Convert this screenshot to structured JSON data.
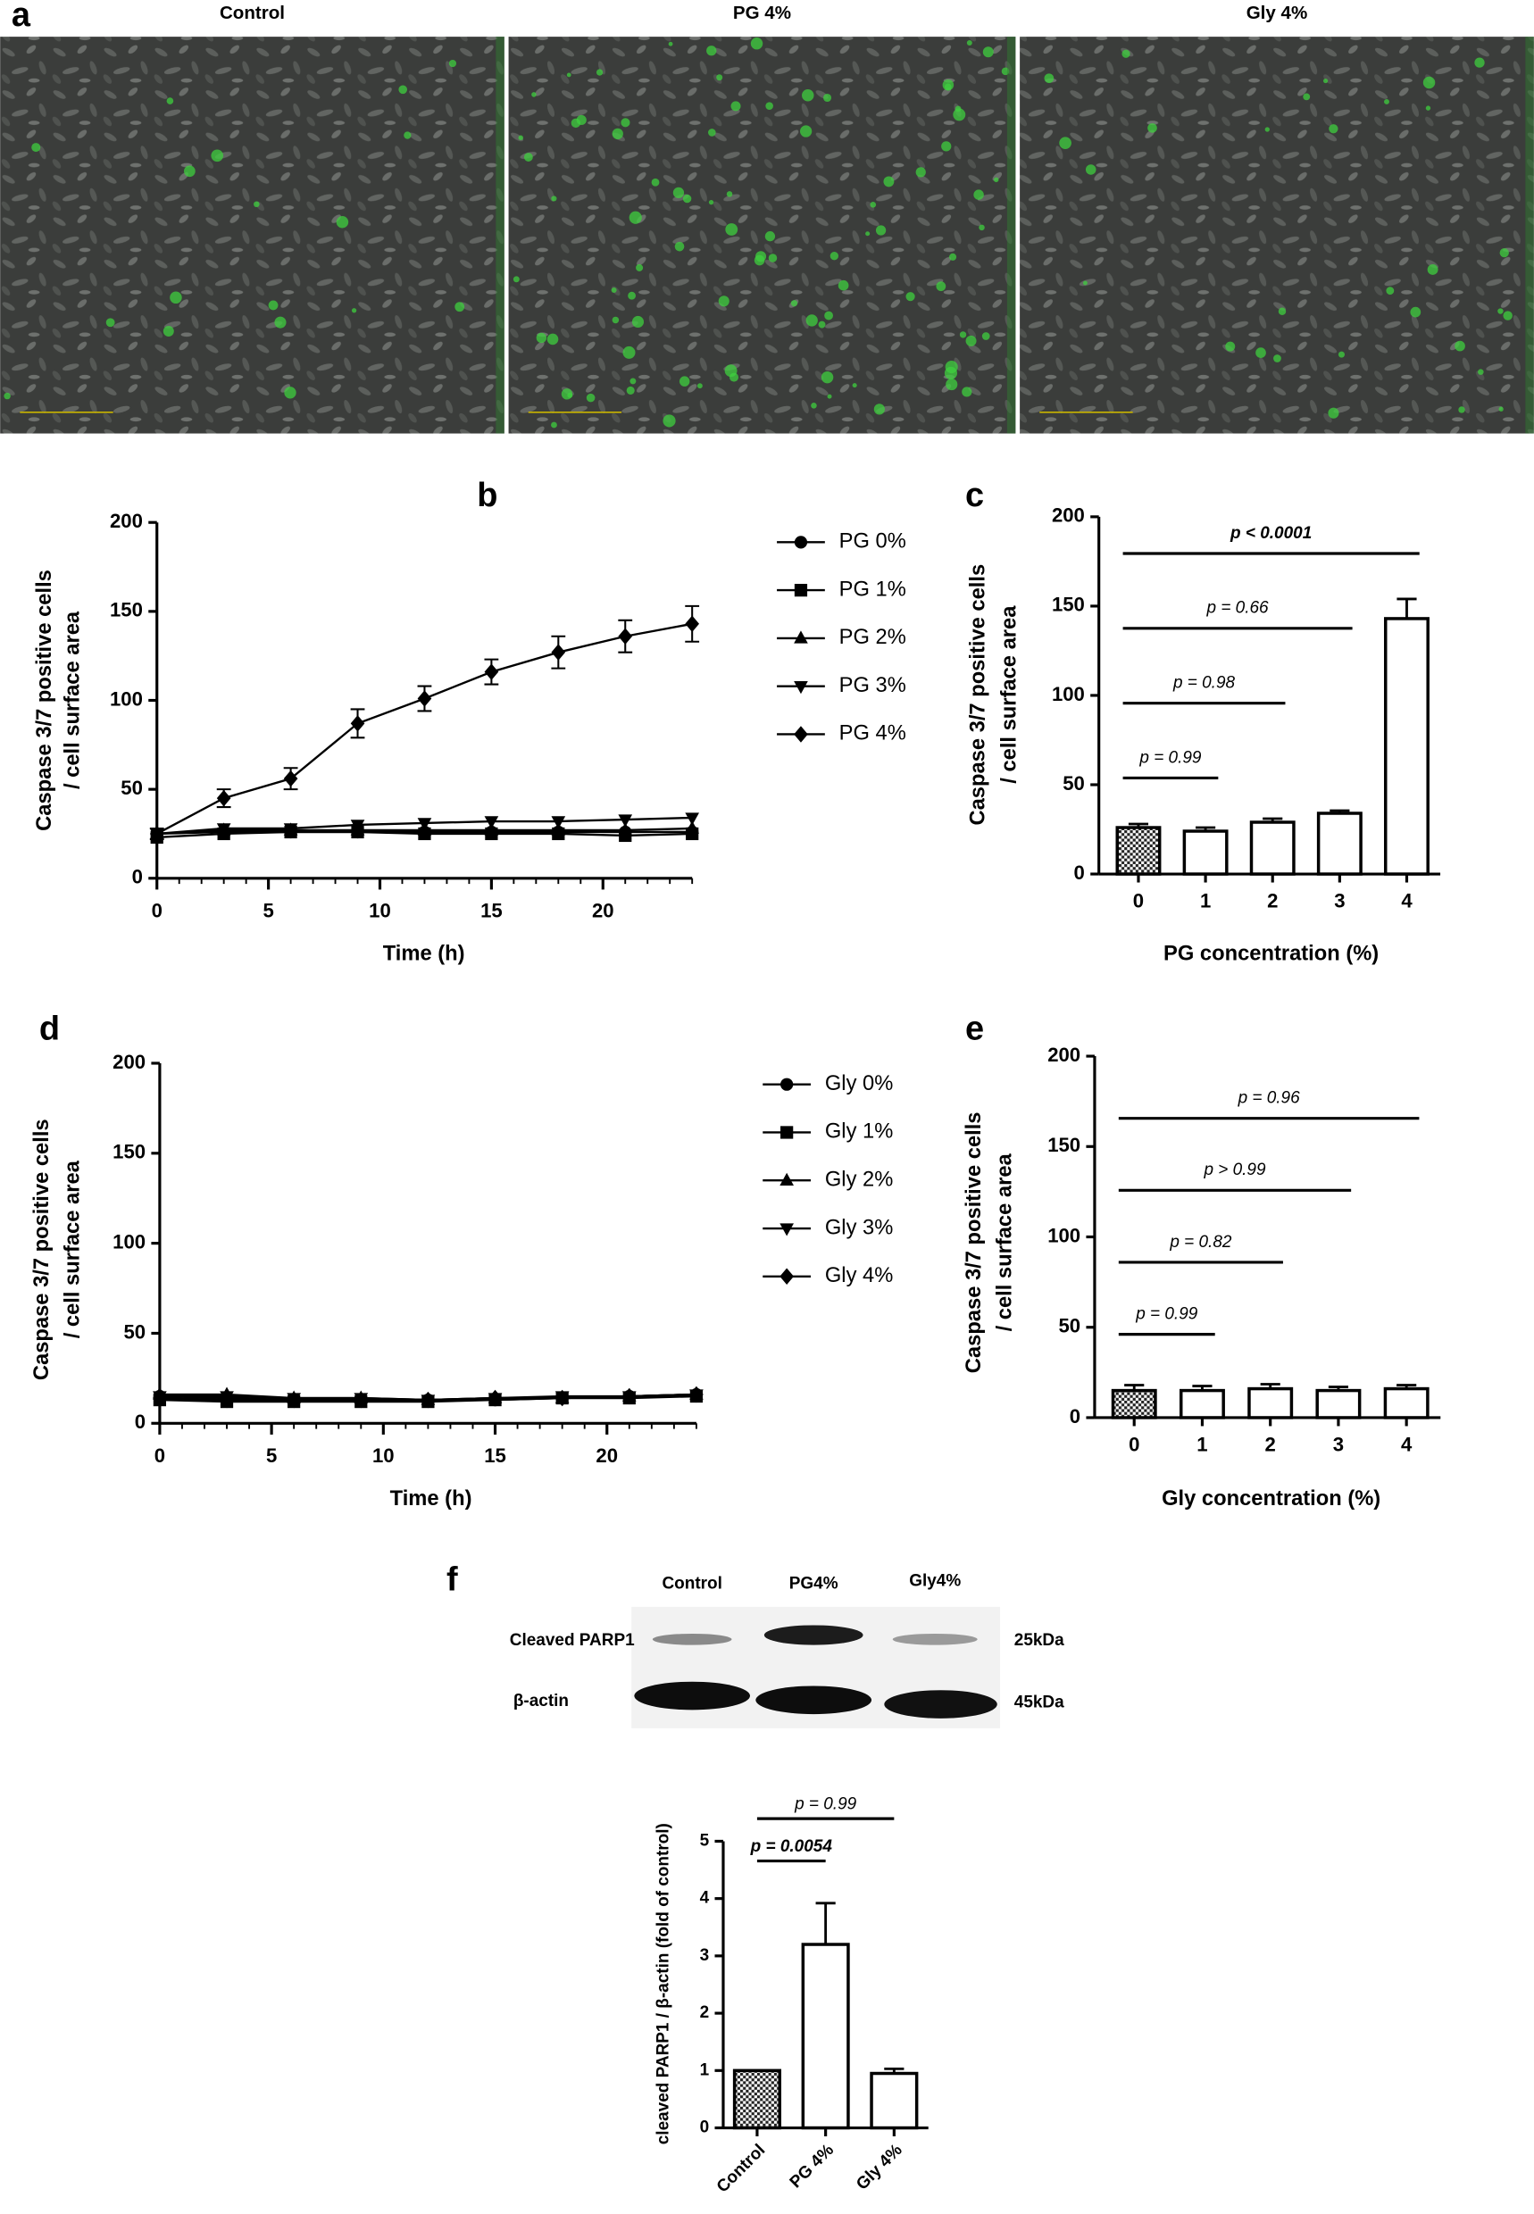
{
  "panel_a": {
    "panel": "a",
    "titles": [
      "Control",
      "PG 4%",
      "Gly 4%"
    ]
  },
  "blot": {
    "panel": "f",
    "lanes": [
      "Control",
      "PG4%",
      "Gly4%"
    ],
    "rows": [
      {
        "name": "Cleaved PARP1",
        "size": "25kDa"
      },
      {
        "name": "β-actin",
        "size": "45kDa"
      }
    ]
  },
  "chart_data": [
    {
      "type": "line",
      "panel": "b",
      "x_label": "Time (h)",
      "y_label": [
        "Caspase 3/7 positive cells",
        "/ cell surface area"
      ],
      "x": [
        0,
        3,
        6,
        9,
        12,
        15,
        18,
        21,
        24
      ],
      "xlim": [
        0,
        24
      ],
      "xticks": [
        0,
        5,
        10,
        15,
        20
      ],
      "x_minor_ticks": true,
      "ylim": [
        0,
        200
      ],
      "yticks": [
        0,
        50,
        100,
        150,
        200
      ],
      "color": "#000000",
      "series": [
        {
          "name": "PG 0%",
          "marker": "circle",
          "values": [
            25,
            26,
            26,
            26,
            26,
            26,
            26,
            26,
            26
          ]
        },
        {
          "name": "PG 1%",
          "marker": "square",
          "values": [
            23,
            25,
            26,
            26,
            25,
            25,
            25,
            24,
            25
          ]
        },
        {
          "name": "PG 2%",
          "marker": "triangle-up",
          "values": [
            25,
            27,
            27,
            27,
            27,
            27,
            27,
            27,
            28
          ]
        },
        {
          "name": "PG 3%",
          "marker": "triangle-down",
          "values": [
            25,
            28,
            28,
            30,
            31,
            32,
            32,
            33,
            34
          ]
        },
        {
          "name": "PG 4%",
          "marker": "diamond",
          "values": [
            25,
            45,
            56,
            87,
            101,
            116,
            127,
            136,
            143
          ],
          "errors": [
            3,
            5,
            6,
            8,
            7,
            7,
            9,
            9,
            10
          ]
        }
      ]
    },
    {
      "type": "bar",
      "panel": "c",
      "x_label": "PG concentration (%)",
      "y_label": [
        "Caspase 3/7 positive cells",
        "/ cell surface area"
      ],
      "categories": [
        "0",
        "1",
        "2",
        "3",
        "4"
      ],
      "values": [
        26,
        24,
        29,
        34,
        143
      ],
      "errors": [
        2,
        2,
        2,
        1.5,
        11
      ],
      "ylim": [
        0,
        200
      ],
      "yticks": [
        0,
        50,
        100,
        150,
        200
      ],
      "hatched_first": true,
      "annotations": [
        {
          "text": "p = 0.99",
          "bold": false
        },
        {
          "text": "p = 0.98",
          "bold": false
        },
        {
          "text": "p = 0.66",
          "bold": false
        },
        {
          "text": "p < 0.0001",
          "bold": true
        }
      ]
    },
    {
      "type": "line",
      "panel": "d",
      "x_label": "Time (h)",
      "y_label": [
        "Caspase 3/7 positive cells",
        "/ cell surface area"
      ],
      "x": [
        0,
        3,
        6,
        9,
        12,
        15,
        18,
        21,
        24
      ],
      "xlim": [
        0,
        24
      ],
      "xticks": [
        0,
        5,
        10,
        15,
        20
      ],
      "x_minor_ticks": true,
      "ylim": [
        0,
        200
      ],
      "yticks": [
        0,
        50,
        100,
        150,
        200
      ],
      "color": "#000000",
      "series": [
        {
          "name": "Gly 0%",
          "marker": "circle",
          "values": [
            15,
            14,
            13,
            13,
            13,
            13,
            14,
            15,
            16
          ]
        },
        {
          "name": "Gly 1%",
          "marker": "square",
          "values": [
            13,
            12,
            12,
            12,
            12,
            13,
            14,
            14,
            15
          ]
        },
        {
          "name": "Gly 2%",
          "marker": "triangle-up",
          "values": [
            16,
            16,
            14,
            14,
            13,
            14,
            14,
            15,
            16
          ]
        },
        {
          "name": "Gly 3%",
          "marker": "triangle-down",
          "values": [
            15,
            15,
            14,
            14,
            13,
            14,
            15,
            15,
            16
          ]
        },
        {
          "name": "Gly 4%",
          "marker": "diamond",
          "values": [
            14,
            13,
            13,
            13,
            13,
            14,
            14,
            15,
            16
          ]
        }
      ]
    },
    {
      "type": "bar",
      "panel": "e",
      "x_label": "Gly concentration (%)",
      "y_label": [
        "Caspase 3/7 positive cells",
        "/ cell surface area"
      ],
      "categories": [
        "0",
        "1",
        "2",
        "3",
        "4"
      ],
      "values": [
        15,
        15,
        16,
        15,
        16
      ],
      "errors": [
        3,
        2.5,
        2.5,
        2,
        2
      ],
      "ylim": [
        0,
        200
      ],
      "yticks": [
        0,
        50,
        100,
        150,
        200
      ],
      "hatched_first": true,
      "annotations": [
        {
          "text": "p = 0.99",
          "bold": false
        },
        {
          "text": "p = 0.82",
          "bold": false
        },
        {
          "text": "p > 0.99",
          "bold": false
        },
        {
          "text": "p = 0.96",
          "bold": false
        }
      ]
    },
    {
      "type": "bar",
      "y_label": [
        "cleaved PARP1 / β-actin (fold of control)"
      ],
      "categories": [
        "Control",
        "PG 4%",
        "Gly 4%"
      ],
      "values": [
        1,
        3.2,
        0.95
      ],
      "errors": [
        0,
        0.72,
        0.08
      ],
      "ylim": [
        0,
        5
      ],
      "yticks": [
        0,
        1,
        2,
        3,
        4,
        5
      ],
      "hatched_first": true,
      "rotated_labels": true,
      "annotations": [
        {
          "text": "p = 0.0054",
          "bold": true
        },
        {
          "text": "p = 0.99",
          "bold": false
        }
      ]
    }
  ]
}
